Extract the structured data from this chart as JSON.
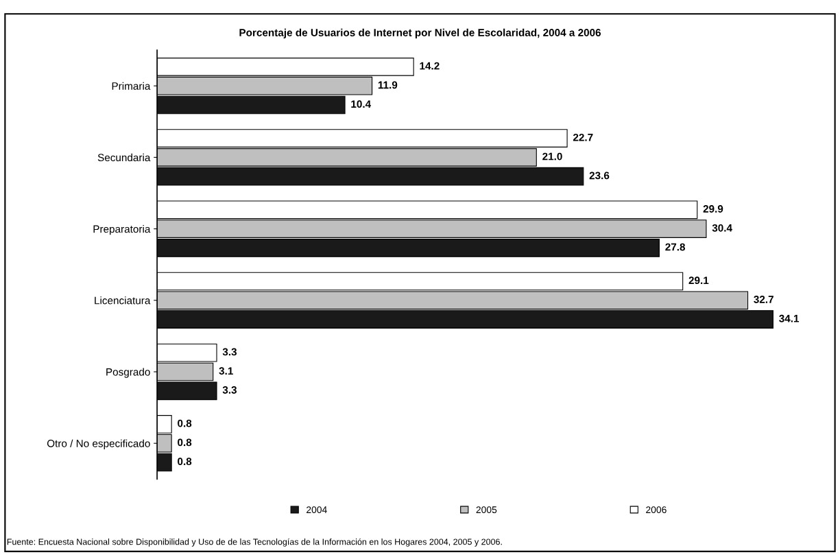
{
  "chart_data": {
    "type": "bar",
    "orientation": "horizontal",
    "title": "Porcentaje de Usuarios de Internet por Nivel de Escolaridad, 2004 a 2006",
    "categories": [
      "Primaria",
      "Secundaria",
      "Preparatoria",
      "Licenciatura",
      "Posgrado",
      "Otro / No especificado"
    ],
    "series": [
      {
        "name": "2004",
        "color": "#1a1a1a",
        "values": [
          10.4,
          23.6,
          27.8,
          34.1,
          3.3,
          0.8
        ],
        "value_labels": [
          "10.4",
          "23.6",
          "27.8",
          "34.1",
          "3.3",
          "0.8"
        ]
      },
      {
        "name": "2005",
        "color": "#bfbfbf",
        "values": [
          11.9,
          21.0,
          30.4,
          32.7,
          3.1,
          0.8
        ],
        "value_labels": [
          "11.9",
          "21.0",
          "30.4",
          "32.7",
          "3.1",
          "0.8"
        ]
      },
      {
        "name": "2006",
        "color": "#ffffff",
        "values": [
          14.2,
          22.7,
          29.9,
          29.1,
          3.3,
          0.8
        ],
        "value_labels": [
          "14.2",
          "22.7",
          "29.9",
          "29.1",
          "3.3",
          "0.8"
        ]
      }
    ],
    "legend": "bottom",
    "grid": false,
    "tick_labels": "y",
    "annotations": [
      "Fuente: Encuesta Nacional sobre Disponibilidad y Uso de de las Tecnologías de la Información en los Hogares 2004, 2005 y 2006."
    ]
  }
}
